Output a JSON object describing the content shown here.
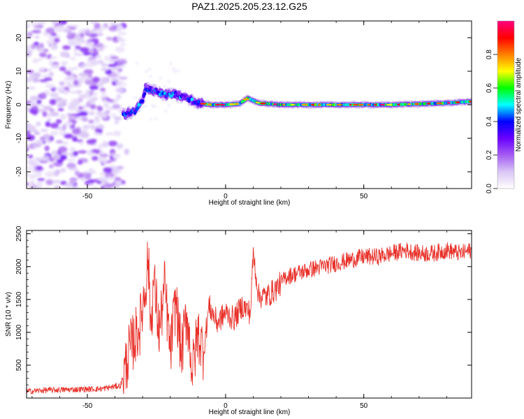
{
  "figure_title": "PAZ1.2025.205.23.12.G25",
  "colors": {
    "snr_line": "#e8312a",
    "axes": "#000000",
    "spectral_ramp": [
      "#ffffff",
      "#d9c6f5",
      "#a45cf2",
      "#6a00ff",
      "#0000ff",
      "#00ffff",
      "#00ff00",
      "#ffff00",
      "#ff7f00",
      "#ff0000",
      "#ff0080"
    ]
  },
  "chart_data": [
    {
      "type": "heatmap",
      "xlabel": "Height of straight line (km)",
      "ylabel": "Frequency (Hz)",
      "xlim": [
        -72,
        89
      ],
      "ylim": [
        -25,
        25
      ],
      "xticks": [
        -50,
        0,
        50
      ],
      "yticks": [
        -20,
        -10,
        0,
        10,
        20
      ],
      "colorbar": {
        "label": "Normalized spectral amplitude",
        "range": [
          0,
          1
        ],
        "ticks": [
          "0.0",
          "0.2",
          "0.4",
          "0.6",
          "0.8"
        ]
      },
      "signal_track": [
        {
          "x": -37,
          "y": -3
        },
        {
          "x": -33,
          "y": -2
        },
        {
          "x": -30,
          "y": 1
        },
        {
          "x": -29,
          "y": 5
        },
        {
          "x": -25,
          "y": 4
        },
        {
          "x": -22,
          "y": 3
        },
        {
          "x": -18,
          "y": 3
        },
        {
          "x": -14,
          "y": 2
        },
        {
          "x": -10,
          "y": 0.5
        },
        {
          "x": -5,
          "y": 0
        },
        {
          "x": 0,
          "y": 0
        },
        {
          "x": 5,
          "y": 0.3
        },
        {
          "x": 8,
          "y": 2
        },
        {
          "x": 12,
          "y": 0.5
        },
        {
          "x": 20,
          "y": 0
        },
        {
          "x": 40,
          "y": 0
        },
        {
          "x": 60,
          "y": 0
        },
        {
          "x": 80,
          "y": 0.5
        },
        {
          "x": 89,
          "y": 1
        }
      ],
      "noise_region_x": [
        -72,
        -37
      ]
    },
    {
      "type": "line",
      "xlabel": "Height of straight line (km)",
      "ylabel": "SNR (10 * v/v)",
      "xlim": [
        -72,
        89
      ],
      "ylim": [
        0,
        2550
      ],
      "xticks": [
        -50,
        0,
        50
      ],
      "yticks": [
        500,
        1000,
        1500,
        2000,
        2500
      ],
      "series": [
        {
          "x": [
            -72,
            -65,
            -55,
            -45,
            -38,
            -36,
            -35,
            -33,
            -31,
            -29,
            -28,
            -27,
            -26,
            -24,
            -22,
            -20,
            -18,
            -16,
            -14,
            -12,
            -10,
            -8,
            -6,
            -3,
            0,
            3,
            6,
            9,
            10,
            12,
            15,
            18,
            22,
            26,
            30,
            35,
            40,
            45,
            50,
            55,
            60,
            65,
            70,
            75,
            80,
            85,
            89
          ],
          "y": [
            100,
            120,
            130,
            140,
            190,
            500,
            700,
            900,
            1100,
            1700,
            2150,
            1100,
            1800,
            1000,
            1700,
            700,
            1500,
            650,
            1300,
            400,
            1000,
            700,
            1400,
            1150,
            1300,
            1200,
            1400,
            1300,
            2200,
            1550,
            1550,
            1650,
            1850,
            1900,
            1950,
            2000,
            2050,
            2100,
            2150,
            2150,
            2200,
            2250,
            2200,
            2200,
            2250,
            2200,
            2250
          ]
        }
      ]
    }
  ]
}
